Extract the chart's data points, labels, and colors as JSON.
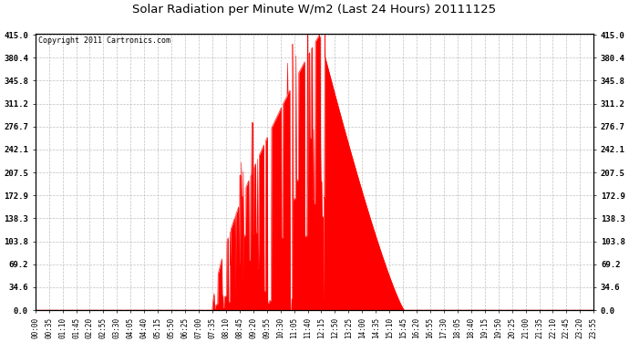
{
  "title": "Solar Radiation per Minute W/m2 (Last 24 Hours) 20111125",
  "copyright": "Copyright 2011 Cartronics.com",
  "fill_color": "#ff0000",
  "line_color": "#ff0000",
  "bg_color": "#ffffff",
  "plot_bg_color": "#ffffff",
  "grid_color": "#b0b0b0",
  "dashed_line_color": "#ff0000",
  "yticks": [
    0.0,
    34.6,
    69.2,
    103.8,
    138.3,
    172.9,
    207.5,
    242.1,
    276.7,
    311.2,
    345.8,
    380.4,
    415.0
  ],
  "ymax": 415.0,
  "ymin": 0.0,
  "xtick_labels": [
    "00:00",
    "00:35",
    "01:10",
    "01:45",
    "02:20",
    "02:55",
    "03:30",
    "04:05",
    "04:40",
    "05:15",
    "05:50",
    "06:25",
    "07:00",
    "07:35",
    "08:10",
    "08:45",
    "09:20",
    "09:55",
    "10:30",
    "11:05",
    "11:40",
    "12:15",
    "12:50",
    "13:25",
    "14:00",
    "14:35",
    "15:10",
    "15:45",
    "16:20",
    "16:55",
    "17:30",
    "18:05",
    "18:40",
    "19:15",
    "19:50",
    "20:25",
    "21:00",
    "21:35",
    "22:10",
    "22:45",
    "23:20",
    "23:55"
  ],
  "num_points": 1440,
  "figwidth": 6.9,
  "figheight": 3.75,
  "dpi": 100
}
